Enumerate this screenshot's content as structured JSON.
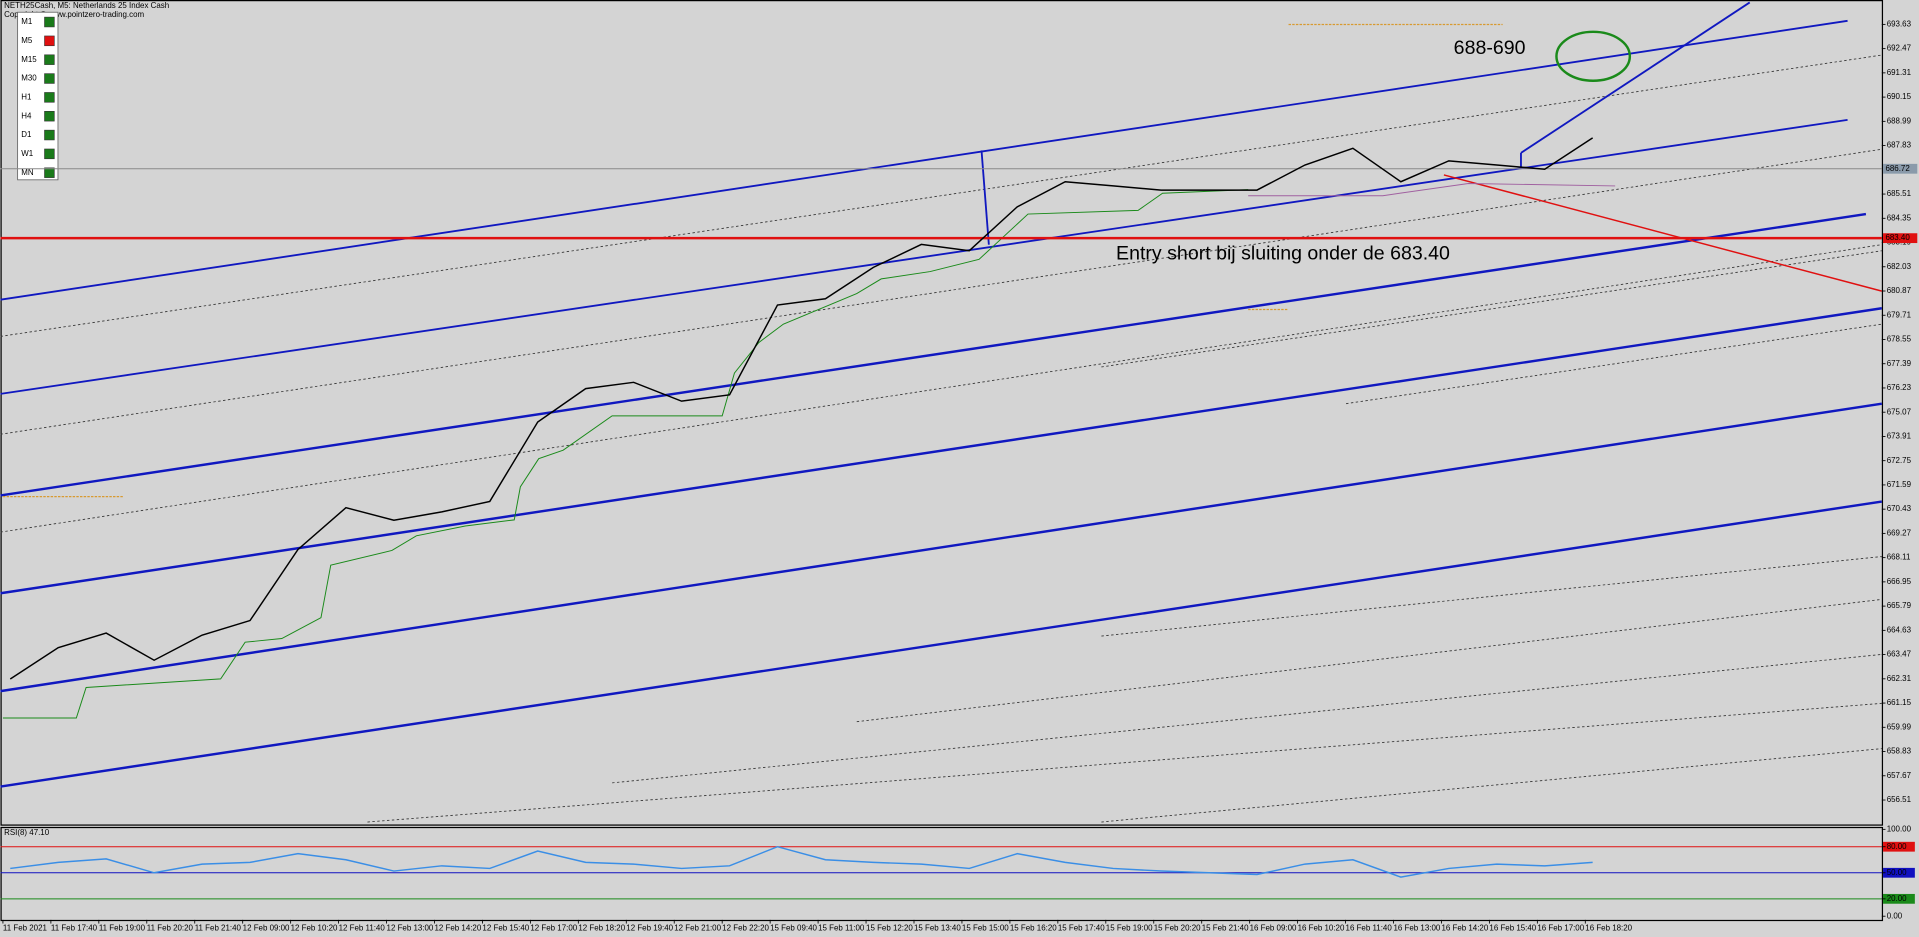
{
  "header": {
    "title": "NETH25Cash, M5:  Netherlands 25 Index Cash",
    "copyright": "Copyright ©   www.pointzero-trading.com"
  },
  "timeframes": [
    {
      "label": "M1",
      "color": "#1a7a1a"
    },
    {
      "label": "M5",
      "color": "#e01010"
    },
    {
      "label": "M15",
      "color": "#1a7a1a"
    },
    {
      "label": "M30",
      "color": "#1a7a1a"
    },
    {
      "label": "H1",
      "color": "#1a7a1a"
    },
    {
      "label": "H4",
      "color": "#1a7a1a"
    },
    {
      "label": "D1",
      "color": "#1a7a1a"
    },
    {
      "label": "W1",
      "color": "#1a7a1a"
    },
    {
      "label": "MN",
      "color": "#1a7a1a"
    }
  ],
  "chart_data": [
    {
      "type": "line",
      "categories": [
        "11 Feb 2021",
        "11 Feb 17:40",
        "11 Feb 19:00",
        "11 Feb 20:20",
        "11 Feb 21:40",
        "12 Feb 09:00",
        "12 Feb 10:20",
        "12 Feb 11:40",
        "12 Feb 13:00",
        "12 Feb 14:20",
        "12 Feb 15:40",
        "12 Feb 17:00",
        "12 Feb 18:20",
        "12 Feb 19:40",
        "12 Feb 21:00",
        "12 Feb 22:20",
        "15 Feb 09:40",
        "15 Feb 11:00",
        "15 Feb 12:20",
        "15 Feb 13:40",
        "15 Feb 15:00",
        "15 Feb 16:20",
        "15 Feb 17:40",
        "15 Feb 19:00",
        "15 Feb 20:20",
        "15 Feb 21:40",
        "16 Feb 09:00",
        "16 Feb 10:20",
        "16 Feb 11:40",
        "16 Feb 13:00",
        "16 Feb 14:20",
        "16 Feb 15:40",
        "16 Feb 17:00",
        "16 Feb 18:20"
      ],
      "values": [
        662.3,
        663.8,
        664.5,
        663.2,
        664.4,
        665.1,
        668.5,
        670.5,
        669.9,
        670.3,
        670.8,
        674.6,
        676.2,
        676.5,
        675.6,
        675.9,
        680.2,
        680.5,
        682.0,
        683.1,
        682.8,
        684.9,
        686.1,
        685.9,
        685.7,
        685.7,
        685.7,
        686.9,
        687.7,
        686.1,
        687.1,
        686.9,
        686.7,
        688.2
      ],
      "color": "#000000",
      "ylim": [
        655.34,
        694.68
      ],
      "yticks": [
        693.63,
        692.47,
        691.31,
        690.15,
        688.99,
        687.83,
        685.51,
        684.35,
        683.19,
        682.03,
        680.87,
        679.71,
        678.55,
        677.39,
        676.23,
        675.07,
        673.91,
        672.75,
        671.59,
        670.43,
        669.27,
        668.11,
        666.95,
        665.79,
        664.63,
        663.47,
        662.31,
        661.15,
        659.99,
        658.83,
        657.67,
        656.51
      ],
      "last_price": 686.72,
      "level": {
        "value": 683.4,
        "label": "683.40"
      },
      "annotations": [
        "688-690",
        "Entry short bij sluiting onder de 683.40"
      ]
    },
    {
      "type": "line",
      "title": "RSI(8) 47.10",
      "values": [
        55,
        62,
        66,
        50,
        60,
        62,
        72,
        65,
        52,
        58,
        55,
        75,
        62,
        60,
        55,
        58,
        80,
        65,
        62,
        60,
        55,
        72,
        62,
        55,
        52,
        50,
        48,
        60,
        65,
        45,
        55,
        60,
        58,
        62
      ],
      "color": "#3a8ee6",
      "ylim": [
        0,
        100
      ],
      "yticks": [
        {
          "value": 100,
          "label": "100.00"
        },
        {
          "value": 80,
          "label": "80.00"
        },
        {
          "value": 50,
          "label": "50.00"
        },
        {
          "value": 20,
          "label": "20.00"
        },
        {
          "value": 0,
          "label": "0.00"
        }
      ],
      "levels": [
        {
          "value": 80,
          "color": "#e01010"
        },
        {
          "value": 50,
          "color": "#1010c0"
        },
        {
          "value": 20,
          "color": "#1a8a1a"
        }
      ]
    }
  ]
}
